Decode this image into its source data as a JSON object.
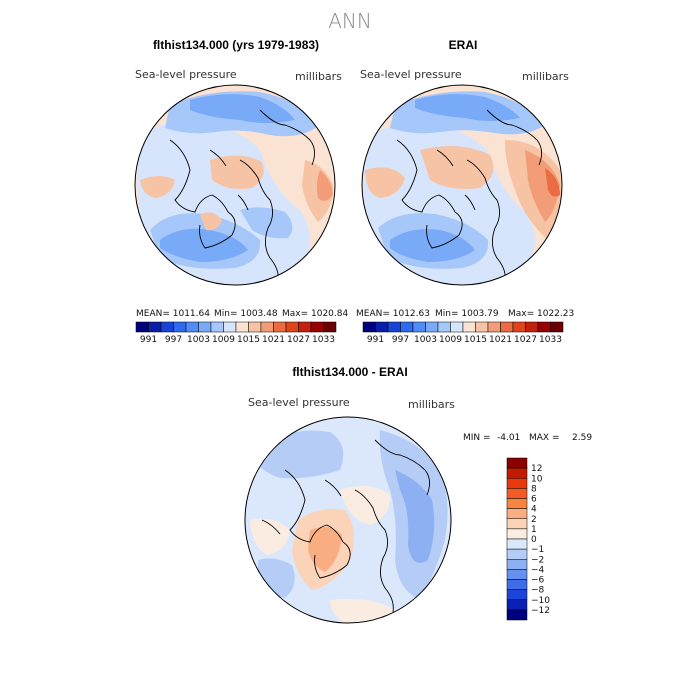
{
  "figure_title": "ANN",
  "chart_data": [
    {
      "type": "heatmap",
      "panel": "model",
      "title": "flthist134.000 (yrs 1979-1983)",
      "field_label": "Sea-level pressure",
      "units_label": "millibars",
      "projection": "north polar stereographic",
      "mean_text": "MEAN= 1011.64",
      "min_text": "Min= 1003.48",
      "max_text": "Max= 1020.84",
      "mean": 1011.64,
      "min": 1003.48,
      "max": 1020.84,
      "colorbar_levels": [
        991,
        994,
        997,
        1000,
        1003,
        1006,
        1009,
        1012,
        1015,
        1018,
        1021,
        1024,
        1027,
        1030,
        1033
      ],
      "colorbar_tick_labels": [
        "991",
        "997",
        "1003",
        "1009",
        "1015",
        "1021",
        "1027",
        "1033"
      ]
    },
    {
      "type": "heatmap",
      "panel": "obs",
      "title": "ERAI",
      "field_label": "Sea-level pressure",
      "units_label": "millibars",
      "projection": "north polar stereographic",
      "mean_text": "MEAN= 1012.63",
      "min_text": "Min= 1003.79",
      "max_text": "Max= 1022.23",
      "mean": 1012.63,
      "min": 1003.79,
      "max": 1022.23,
      "colorbar_levels": [
        991,
        994,
        997,
        1000,
        1003,
        1006,
        1009,
        1012,
        1015,
        1018,
        1021,
        1024,
        1027,
        1030,
        1033
      ],
      "colorbar_tick_labels": [
        "991",
        "997",
        "1003",
        "1009",
        "1015",
        "1021",
        "1027",
        "1033"
      ]
    },
    {
      "type": "heatmap",
      "panel": "difference",
      "title": "flthist134.000 - ERAI",
      "field_label": "Sea-level pressure",
      "units_label": "millibars",
      "projection": "north polar stereographic",
      "min_label": "MIN =",
      "min_value": "-4.01",
      "max_label": "MAX =",
      "max_value": "2.59",
      "min": -4.01,
      "max": 2.59,
      "colorbar_levels": [
        12,
        10,
        8,
        6,
        4,
        2,
        1,
        0,
        -1,
        -2,
        -4,
        -6,
        -8,
        -10,
        -12
      ],
      "colorbar_tick_labels": [
        "12",
        "10",
        "8",
        "6",
        "4",
        "2",
        "1",
        "0",
        "−1",
        "−2",
        "−4",
        "−6",
        "−8",
        "−10",
        "−12"
      ]
    }
  ],
  "colors": {
    "abs_palette": [
      "#00007f",
      "#0a1fa8",
      "#1844d6",
      "#2f6bf0",
      "#4f8cf5",
      "#79aaf7",
      "#a6c7fa",
      "#d6e5fb",
      "#fbe3d3",
      "#f7c3a5",
      "#f29d78",
      "#eb6b42",
      "#e0441c",
      "#c4210d",
      "#990000",
      "#6b0000"
    ],
    "diff_palette": [
      "#8b0000",
      "#c41a00",
      "#e8390d",
      "#f25c24",
      "#f7843f",
      "#f9ae82",
      "#fbd3b9",
      "#fbece2",
      "#dbe8fb",
      "#b5cdf6",
      "#8db0f2",
      "#6690ef",
      "#3f6de8",
      "#1d44d9",
      "#0a20b5",
      "#00007f"
    ],
    "land_outline": "#000000",
    "title_gray": "#888888"
  }
}
